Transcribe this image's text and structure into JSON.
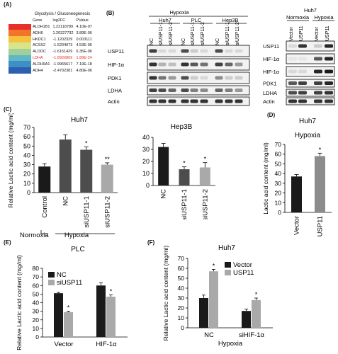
{
  "panels": {
    "A": {
      "label": "(A)",
      "title": "Glycolysis / Gluconeogenesis",
      "columns": [
        "Gene",
        "log2FC",
        "PValue"
      ],
      "rows": [
        {
          "gene": "ALDH1B1",
          "log2fc": "1.22118789",
          "pvalue": "4.10E-07",
          "color": "#e8302a",
          "highlight": false
        },
        {
          "gene": "ADH6",
          "log2fc": "1.20327732",
          "pvalue": "3.89E-06",
          "color": "#f0742a",
          "highlight": false
        },
        {
          "gene": "HKDC1",
          "log2fc": "-1.1202329",
          "pvalue": "0.003111",
          "color": "#f6c23e",
          "highlight": false
        },
        {
          "gene": "ACSS2",
          "log2fc": "-1.5204073",
          "pvalue": "4.53E-06",
          "color": "#d9e48a",
          "highlight": false
        },
        {
          "gene": "ALDOC",
          "log2fc": "-1.6151429",
          "pvalue": "6.35E-06",
          "color": "#9fcf9a",
          "highlight": false
        },
        {
          "gene": "LDHA",
          "log2fc": "-1.8926869",
          "pvalue": "1.89E-24",
          "color": "#5fb7c4",
          "highlight": true
        },
        {
          "gene": "ALDH9A1",
          "log2fc": "-1.9965617",
          "pvalue": "7.19E-18",
          "color": "#3e8fc8",
          "highlight": false
        },
        {
          "gene": "ADH4",
          "log2fc": "-2.4702381",
          "pvalue": "4.80E-06",
          "color": "#2d5fb0",
          "highlight": false
        }
      ]
    },
    "B": {
      "label": "(B)",
      "left": {
        "condition": "Hypoxia",
        "cell_lines": [
          "Huh7",
          "PLC",
          "Hep3B"
        ],
        "lanes": [
          "NC",
          "siUSP11-1",
          "siUSP11-2",
          "NC",
          "siUSP11-1",
          "siUSP11-2",
          "NC",
          "siUSP11-1",
          "siUSP11-2"
        ],
        "proteins": [
          "USP11",
          "HIF-1α",
          "PDK1",
          "LDHA",
          "Actin"
        ]
      },
      "right": {
        "cell_line": "Huh7",
        "conditions": [
          "Normoxia",
          "Hypoxia"
        ],
        "lanes": [
          "Vector",
          "USP11",
          "Vector",
          "USP11"
        ],
        "proteins": [
          "USP11",
          "HIF-1α",
          "HIF-1α",
          "PDK1",
          "LDHA",
          "Actin"
        ]
      }
    },
    "C": {
      "label": "(C)"
    },
    "D": {
      "label": "(D)"
    },
    "E": {
      "label": "(E)"
    },
    "F": {
      "label": "(F)"
    }
  },
  "chart_data": [
    {
      "id": "C1",
      "type": "bar",
      "title": "Huh7",
      "ylabel": "Relative Lactic acid content (mg/ml)",
      "ylim": [
        0,
        70
      ],
      "yticks": [
        0,
        10,
        20,
        30,
        40,
        50,
        60,
        70
      ],
      "categories": [
        "Control",
        "NC",
        "siUSP11-1",
        "siUSP11-2"
      ],
      "values": [
        28,
        57,
        46,
        30
      ],
      "errors": [
        3,
        5,
        3,
        2
      ],
      "significance": [
        "",
        "",
        "*",
        "**"
      ],
      "colors": [
        "#1a1a1a",
        "#4d4d4d",
        "#4d4d4d",
        "#a9a9a9"
      ],
      "groups": [
        {
          "label": "Normoxia"
        },
        {
          "label": "Hypoxia"
        }
      ]
    },
    {
      "id": "C2",
      "type": "bar",
      "title": "Hep3B",
      "ylim": [
        0,
        40
      ],
      "yticks": [
        0,
        10,
        20,
        30,
        40
      ],
      "categories": [
        "NC",
        "siUSP11-1",
        "siUSP11-2"
      ],
      "values": [
        32,
        13.5,
        15
      ],
      "errors": [
        3,
        2,
        4
      ],
      "significance": [
        "",
        "*",
        "*"
      ],
      "colors": [
        "#1a1a1a",
        "#4d4d4d",
        "#a9a9a9"
      ]
    },
    {
      "id": "D",
      "type": "bar",
      "title": "Hypoxia",
      "cell_line": "Huh7",
      "ylabel": "Lactic acid content (mg/ml)",
      "ylim": [
        0,
        70
      ],
      "yticks": [
        0,
        10,
        20,
        30,
        40,
        50,
        60,
        70
      ],
      "categories": [
        "Vector",
        "USP11"
      ],
      "values": [
        37,
        58
      ],
      "errors": [
        2,
        3
      ],
      "significance": [
        "",
        "*"
      ],
      "colors": [
        "#1a1a1a",
        "#8c8c8c"
      ]
    },
    {
      "id": "E",
      "type": "bar",
      "title": "PLC",
      "ylabel": "Relative Lactic acid content (mg/ml)",
      "ylim": [
        0,
        80
      ],
      "yticks": [
        0,
        10,
        20,
        30,
        40,
        50,
        60,
        70,
        80
      ],
      "categories": [
        "Vector",
        "HIF-1α"
      ],
      "series": [
        {
          "name": "NC",
          "values": [
            51,
            60
          ],
          "errors": [
            1,
            3
          ],
          "color": "#1a1a1a"
        },
        {
          "name": "siUSP11",
          "values": [
            29,
            47
          ],
          "errors": [
            1,
            2
          ],
          "color": "#a9a9a9"
        }
      ],
      "significance": [
        [
          "",
          "*"
        ],
        [
          "",
          "*"
        ]
      ],
      "legend": "top-left"
    },
    {
      "id": "F",
      "type": "bar",
      "title": "Huh7",
      "ylabel": "Relative Lactic acid content (mg/ml)",
      "ylim": [
        0,
        70
      ],
      "yticks": [
        0,
        10,
        20,
        30,
        40,
        50,
        60,
        70
      ],
      "categories": [
        "NC",
        "siHIF-1α"
      ],
      "xlabel": "Hypoxia",
      "series": [
        {
          "name": "Vector",
          "values": [
            30,
            17
          ],
          "errors": [
            3,
            2
          ],
          "color": "#1a1a1a"
        },
        {
          "name": "USP11",
          "values": [
            57,
            28
          ],
          "errors": [
            2,
            2
          ],
          "color": "#a9a9a9"
        }
      ],
      "significance": [
        [
          "",
          "*"
        ],
        [
          "",
          "*"
        ]
      ],
      "legend": "top-right"
    }
  ]
}
